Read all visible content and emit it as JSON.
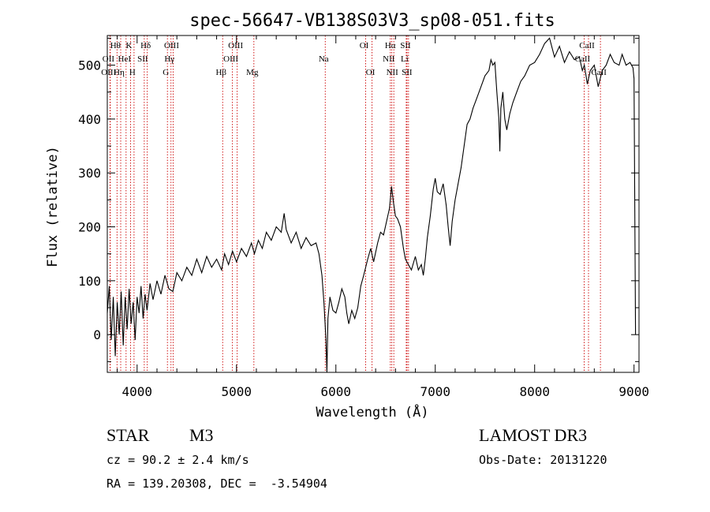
{
  "chart_data": {
    "type": "line",
    "title": "spec-56647-VB138S03V3_sp08-051.fits",
    "xlabel": "Wavelength (Å)",
    "ylabel": "Flux (relative)",
    "xlim": [
      3700,
      9050
    ],
    "ylim": [
      -70,
      555
    ],
    "xticks": [
      4000,
      5000,
      6000,
      7000,
      8000,
      9000
    ],
    "yticks": [
      0,
      100,
      200,
      300,
      400,
      500
    ],
    "grid": false,
    "series": [
      {
        "name": "flux",
        "points": [
          [
            3700,
            40
          ],
          [
            3720,
            90
          ],
          [
            3740,
            -10
          ],
          [
            3760,
            70
          ],
          [
            3780,
            -40
          ],
          [
            3800,
            60
          ],
          [
            3820,
            0
          ],
          [
            3840,
            80
          ],
          [
            3860,
            -20
          ],
          [
            3880,
            70
          ],
          [
            3900,
            10
          ],
          [
            3920,
            85
          ],
          [
            3940,
            20
          ],
          [
            3960,
            60
          ],
          [
            3980,
            -10
          ],
          [
            4000,
            70
          ],
          [
            4020,
            40
          ],
          [
            4040,
            90
          ],
          [
            4060,
            30
          ],
          [
            4080,
            75
          ],
          [
            4100,
            45
          ],
          [
            4130,
            95
          ],
          [
            4160,
            65
          ],
          [
            4200,
            100
          ],
          [
            4240,
            75
          ],
          [
            4280,
            110
          ],
          [
            4320,
            85
          ],
          [
            4360,
            80
          ],
          [
            4400,
            115
          ],
          [
            4450,
            100
          ],
          [
            4500,
            125
          ],
          [
            4550,
            110
          ],
          [
            4600,
            140
          ],
          [
            4650,
            115
          ],
          [
            4700,
            145
          ],
          [
            4750,
            125
          ],
          [
            4800,
            140
          ],
          [
            4850,
            120
          ],
          [
            4880,
            150
          ],
          [
            4920,
            130
          ],
          [
            4960,
            155
          ],
          [
            5000,
            135
          ],
          [
            5050,
            160
          ],
          [
            5100,
            145
          ],
          [
            5150,
            170
          ],
          [
            5180,
            150
          ],
          [
            5220,
            175
          ],
          [
            5260,
            160
          ],
          [
            5300,
            190
          ],
          [
            5350,
            175
          ],
          [
            5400,
            200
          ],
          [
            5450,
            190
          ],
          [
            5480,
            225
          ],
          [
            5500,
            195
          ],
          [
            5550,
            170
          ],
          [
            5600,
            190
          ],
          [
            5650,
            160
          ],
          [
            5700,
            180
          ],
          [
            5750,
            165
          ],
          [
            5800,
            170
          ],
          [
            5830,
            150
          ],
          [
            5860,
            110
          ],
          [
            5880,
            60
          ],
          [
            5900,
            -10
          ],
          [
            5910,
            -70
          ],
          [
            5920,
            30
          ],
          [
            5940,
            70
          ],
          [
            5970,
            45
          ],
          [
            6000,
            40
          ],
          [
            6030,
            60
          ],
          [
            6060,
            85
          ],
          [
            6090,
            70
          ],
          [
            6110,
            40
          ],
          [
            6130,
            20
          ],
          [
            6160,
            45
          ],
          [
            6190,
            30
          ],
          [
            6220,
            50
          ],
          [
            6250,
            90
          ],
          [
            6280,
            110
          ],
          [
            6320,
            140
          ],
          [
            6350,
            160
          ],
          [
            6380,
            135
          ],
          [
            6420,
            170
          ],
          [
            6450,
            190
          ],
          [
            6480,
            185
          ],
          [
            6510,
            210
          ],
          [
            6540,
            235
          ],
          [
            6560,
            275
          ],
          [
            6580,
            245
          ],
          [
            6600,
            220
          ],
          [
            6620,
            215
          ],
          [
            6650,
            200
          ],
          [
            6680,
            160
          ],
          [
            6700,
            140
          ],
          [
            6730,
            130
          ],
          [
            6760,
            120
          ],
          [
            6800,
            145
          ],
          [
            6830,
            120
          ],
          [
            6860,
            130
          ],
          [
            6880,
            110
          ],
          [
            6900,
            140
          ],
          [
            6920,
            180
          ],
          [
            6950,
            220
          ],
          [
            6980,
            270
          ],
          [
            7000,
            290
          ],
          [
            7020,
            265
          ],
          [
            7050,
            260
          ],
          [
            7080,
            280
          ],
          [
            7110,
            240
          ],
          [
            7130,
            200
          ],
          [
            7150,
            165
          ],
          [
            7170,
            210
          ],
          [
            7200,
            250
          ],
          [
            7230,
            280
          ],
          [
            7260,
            310
          ],
          [
            7290,
            350
          ],
          [
            7320,
            390
          ],
          [
            7350,
            400
          ],
          [
            7380,
            420
          ],
          [
            7420,
            440
          ],
          [
            7460,
            460
          ],
          [
            7500,
            480
          ],
          [
            7540,
            490
          ],
          [
            7560,
            510
          ],
          [
            7580,
            500
          ],
          [
            7600,
            505
          ],
          [
            7620,
            450
          ],
          [
            7640,
            400
          ],
          [
            7650,
            340
          ],
          [
            7660,
            420
          ],
          [
            7680,
            450
          ],
          [
            7700,
            400
          ],
          [
            7720,
            380
          ],
          [
            7750,
            410
          ],
          [
            7780,
            430
          ],
          [
            7820,
            450
          ],
          [
            7860,
            470
          ],
          [
            7900,
            480
          ],
          [
            7950,
            500
          ],
          [
            8000,
            505
          ],
          [
            8050,
            520
          ],
          [
            8100,
            540
          ],
          [
            8150,
            550
          ],
          [
            8200,
            515
          ],
          [
            8250,
            535
          ],
          [
            8300,
            505
          ],
          [
            8350,
            525
          ],
          [
            8400,
            510
          ],
          [
            8450,
            515
          ],
          [
            8480,
            490
          ],
          [
            8500,
            500
          ],
          [
            8530,
            465
          ],
          [
            8560,
            490
          ],
          [
            8600,
            500
          ],
          [
            8640,
            460
          ],
          [
            8680,
            490
          ],
          [
            8720,
            500
          ],
          [
            8760,
            520
          ],
          [
            8800,
            505
          ],
          [
            8850,
            500
          ],
          [
            8880,
            520
          ],
          [
            8920,
            500
          ],
          [
            8960,
            505
          ],
          [
            8990,
            495
          ],
          [
            9000,
            475
          ],
          [
            9010,
            150
          ],
          [
            9015,
            0
          ]
        ]
      }
    ],
    "lines": [
      {
        "label": "Hθ",
        "wavelength": 3798,
        "row": 1
      },
      {
        "label": "OII",
        "wavelength": 3727,
        "row": 2
      },
      {
        "label": "OIII",
        "wavelength": 3730,
        "row": 3
      },
      {
        "label": "K",
        "wavelength": 3934,
        "row": 1
      },
      {
        "label": "HeI",
        "wavelength": 3889,
        "row": 2
      },
      {
        "label": "Hη",
        "wavelength": 3835,
        "row": 3
      },
      {
        "label": "Hδ",
        "wavelength": 4102,
        "row": 1
      },
      {
        "label": "SII",
        "wavelength": 4072,
        "row": 2
      },
      {
        "label": "H",
        "wavelength": 3969,
        "row": 3
      },
      {
        "label": "OIII",
        "wavelength": 4363,
        "row": 1
      },
      {
        "label": "Hγ",
        "wavelength": 4341,
        "row": 2
      },
      {
        "label": "G",
        "wavelength": 4305,
        "row": 3
      },
      {
        "label": "OIII",
        "wavelength": 5007,
        "row": 1
      },
      {
        "label": "OIII",
        "wavelength": 4959,
        "row": 2
      },
      {
        "label": "Hβ",
        "wavelength": 4861,
        "row": 3
      },
      {
        "label": "Mg",
        "wavelength": 5175,
        "row": 3
      },
      {
        "label": "Na",
        "wavelength": 5893,
        "row": 2
      },
      {
        "label": "OI",
        "wavelength": 6300,
        "row": 1
      },
      {
        "label": "OI",
        "wavelength": 6364,
        "row": 3
      },
      {
        "label": "Hα",
        "wavelength": 6563,
        "row": 1
      },
      {
        "label": "NII",
        "wavelength": 6548,
        "row": 2
      },
      {
        "label": "NII",
        "wavelength": 6583,
        "row": 3
      },
      {
        "label": "SII",
        "wavelength": 6716,
        "row": 1
      },
      {
        "label": "Li",
        "wavelength": 6708,
        "row": 2
      },
      {
        "label": "SII",
        "wavelength": 6731,
        "row": 3
      },
      {
        "label": "CaII",
        "wavelength": 8542,
        "row": 1
      },
      {
        "label": "CaII",
        "wavelength": 8498,
        "row": 2
      },
      {
        "label": "CaII",
        "wavelength": 8662,
        "row": 3
      }
    ]
  },
  "info": {
    "object_type": "STAR",
    "subclass": "M3",
    "survey": "LAMOST DR3",
    "redshift": "cz = 90.2 ± 2.4 km/s",
    "obs_date": "Obs-Date: 20131220",
    "coords": "RA = 139.20308, DEC =  -3.54904"
  }
}
